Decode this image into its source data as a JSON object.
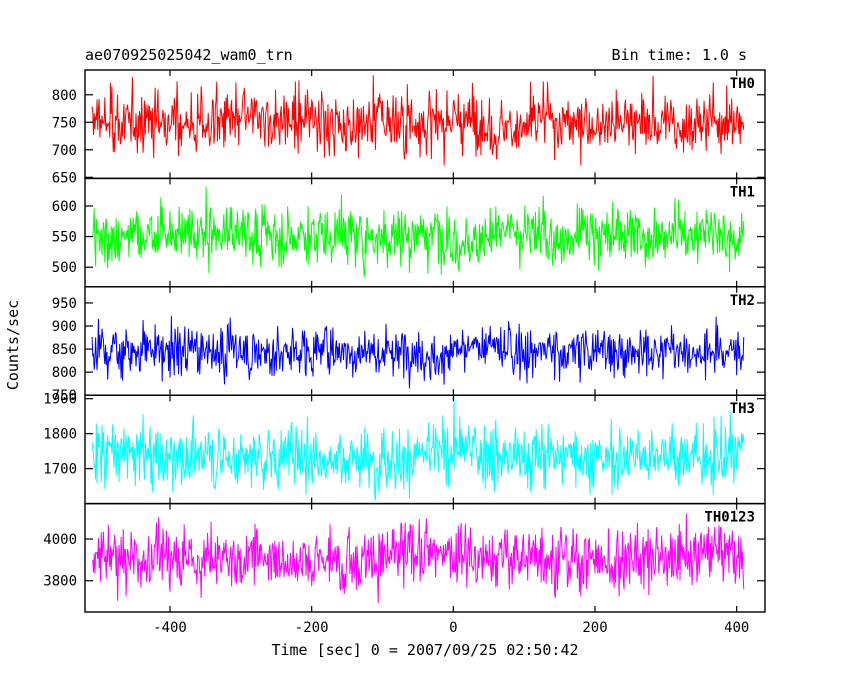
{
  "header": {
    "title": "ae070925025042_wam0_trn",
    "bin_time": "Bin time: 1.0 s"
  },
  "axes": {
    "xlabel": "Time [sec] 0 = 2007/09/25 02:50:42",
    "ylabel": "Counts/sec"
  },
  "chart_data": {
    "type": "line",
    "x_range": [
      -510,
      410
    ],
    "xlim": [
      -520,
      440
    ],
    "x_ticks": [
      -400,
      -200,
      0,
      200,
      400
    ],
    "x_step": 1.0,
    "panels": [
      {
        "name": "TH0",
        "color": "#ff0000",
        "mean": 750,
        "noise": 28,
        "ylim": [
          648,
          845
        ],
        "y_ticks": [
          650,
          700,
          750,
          800
        ]
      },
      {
        "name": "TH1",
        "color": "#00ff00",
        "mean": 555,
        "noise": 24,
        "ylim": [
          468,
          645
        ],
        "y_ticks": [
          500,
          550,
          600
        ]
      },
      {
        "name": "TH2",
        "color": "#0000ff",
        "mean": 848,
        "noise": 28,
        "ylim": [
          750,
          985
        ],
        "y_ticks": [
          750,
          800,
          850,
          900,
          950
        ]
      },
      {
        "name": "TH3",
        "color": "#00ffff",
        "mean": 1740,
        "noise": 45,
        "ylim": [
          1600,
          1910
        ],
        "y_ticks": [
          1700,
          1800,
          1900
        ]
      },
      {
        "name": "TH0123",
        "color": "#ff00ff",
        "mean": 3915,
        "noise": 75,
        "ylim": [
          3650,
          4170
        ],
        "y_ticks": [
          3800,
          4000
        ]
      }
    ]
  }
}
